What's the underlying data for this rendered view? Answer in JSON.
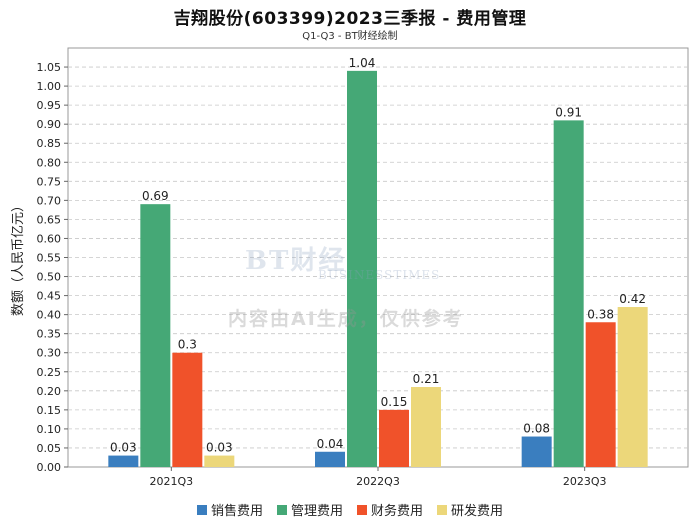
{
  "title": "吉翔股份(603399)2023三季报 - 费用管理",
  "subtitle": "Q1-Q3 - BT财经绘制",
  "watermark": {
    "brand": "BT财经",
    "brand_sub": "BUSINESSTIMES",
    "note": "内容由AI生成，仅供参考"
  },
  "chart_data": {
    "type": "bar",
    "categories": [
      "2021Q3",
      "2022Q3",
      "2023Q3"
    ],
    "series": [
      {
        "name": "销售费用",
        "color": "#3a7ebf",
        "values": [
          0.03,
          0.04,
          0.08
        ],
        "labels": [
          "0.03",
          "0.04",
          "0.08"
        ]
      },
      {
        "name": "管理费用",
        "color": "#45a876",
        "values": [
          0.69,
          1.04,
          0.91
        ],
        "labels": [
          "0.69",
          "1.04",
          "0.91"
        ]
      },
      {
        "name": "财务费用",
        "color": "#f0522a",
        "values": [
          0.3,
          0.15,
          0.38
        ],
        "labels": [
          "0.3",
          "0.15",
          "0.38"
        ]
      },
      {
        "name": "研发费用",
        "color": "#ecd77a",
        "values": [
          0.03,
          0.21,
          0.42
        ],
        "labels": [
          "0.03",
          "0.21",
          "0.42"
        ]
      }
    ],
    "ylabel": "数额（人民币亿元）",
    "xlabel": "",
    "ylim": [
      0,
      1.1
    ],
    "yticks": [
      "0.00",
      "0.05",
      "0.10",
      "0.15",
      "0.20",
      "0.25",
      "0.30",
      "0.35",
      "0.40",
      "0.45",
      "0.50",
      "0.55",
      "0.60",
      "0.65",
      "0.70",
      "0.75",
      "0.80",
      "0.85",
      "0.90",
      "0.95",
      "1.00",
      "1.05"
    ],
    "grid": true,
    "legend_position": "bottom"
  }
}
